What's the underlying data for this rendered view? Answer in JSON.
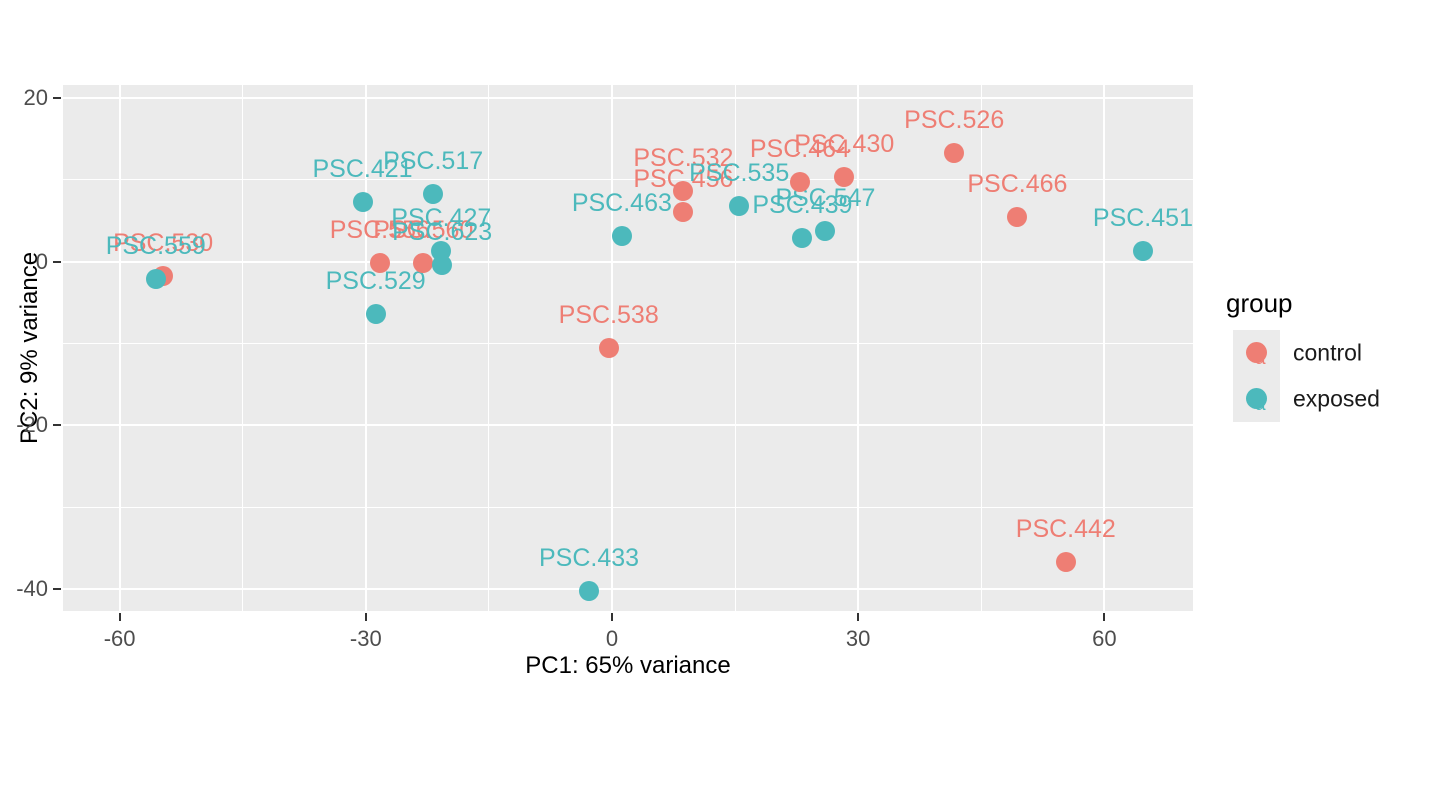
{
  "colors": {
    "control": "#EE7E74",
    "exposed": "#4CB9BC",
    "panel_background": "#EBEBEB",
    "gridline": "#FFFFFF",
    "tick_text": "#4D4D4D",
    "axis_title_text": "#000000"
  },
  "chart_data": {
    "type": "scatter",
    "title": "",
    "xlabel": "PC1: 65% variance",
    "ylabel": "PC2: 9% variance",
    "x_ticks": [
      -60,
      -30,
      0,
      30,
      60
    ],
    "y_ticks": [
      20,
      0,
      -20,
      -40
    ],
    "x_minor_ticks": [
      -45,
      -15,
      15,
      45
    ],
    "y_minor_ticks": [
      10,
      -10,
      -30
    ],
    "x_range": [
      -66.9,
      70.8
    ],
    "y_range": [
      -42.7,
      21.6
    ],
    "grid": true,
    "legend": {
      "title": "group",
      "position": "right",
      "entries": [
        {
          "label": "control",
          "color": "#EE7E74"
        },
        {
          "label": "exposed",
          "color": "#4CB9BC"
        }
      ]
    },
    "series": [
      {
        "name": "control",
        "color": "#EE7E74",
        "points": [
          {
            "label": "PSC.530",
            "x": -54.7,
            "y": -1.7
          },
          {
            "label": "PSC.556",
            "x": -28.3,
            "y": -0.2
          },
          {
            "label": "PSC.560",
            "x": -23.0,
            "y": -0.1
          },
          {
            "label": "PSC.532",
            "x": 8.7,
            "y": 8.6
          },
          {
            "label": "PSC.456",
            "x": 8.7,
            "y": 6.1
          },
          {
            "label": "PSC.464",
            "x": 22.9,
            "y": 9.8
          },
          {
            "label": "PSC.430",
            "x": 28.3,
            "y": 10.3
          },
          {
            "label": "PSC.526",
            "x": 41.7,
            "y": 13.3
          },
          {
            "label": "PSC.466",
            "x": 49.4,
            "y": 5.5
          },
          {
            "label": "PSC.538",
            "x": -0.4,
            "y": -10.5
          },
          {
            "label": "PSC.442",
            "x": 55.3,
            "y": -36.7
          }
        ]
      },
      {
        "name": "exposed",
        "color": "#4CB9BC",
        "points": [
          {
            "label": "PSC.559",
            "x": -55.6,
            "y": -2.1
          },
          {
            "label": "PSC.421",
            "x": -30.4,
            "y": 7.3
          },
          {
            "label": "PSC.517",
            "x": -21.8,
            "y": 8.3
          },
          {
            "label": "PSC.427",
            "x": -20.8,
            "y": 1.3
          },
          {
            "label": "PSC.623",
            "x": -20.7,
            "y": -0.4
          },
          {
            "label": "PSC.529",
            "x": -28.8,
            "y": -6.4
          },
          {
            "label": "PSC.463",
            "x": 1.2,
            "y": 3.2
          },
          {
            "label": "PSC.535",
            "x": 15.5,
            "y": 6.8
          },
          {
            "label": "PSC.439",
            "x": 23.2,
            "y": 2.9
          },
          {
            "label": "PSC.547",
            "x": 26.0,
            "y": 3.7
          },
          {
            "label": "PSC.451",
            "x": 64.7,
            "y": 1.3
          },
          {
            "label": "PSC.433",
            "x": -2.8,
            "y": -40.3
          }
        ]
      }
    ]
  }
}
